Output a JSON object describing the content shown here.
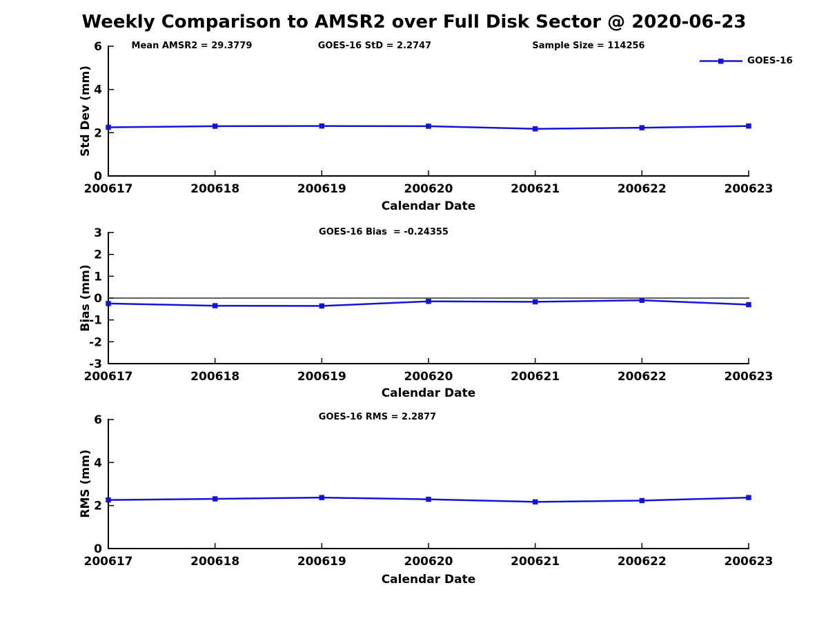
{
  "title": "Weekly Comparison to AMSR2 over Full Disk Sector @ 2020-06-23",
  "legend": {
    "label": "GOES-16"
  },
  "accent_color": "#1414d7",
  "chart_data": [
    {
      "type": "line",
      "panel": "std-dev",
      "annotations": [
        "Mean AMSR2 = 29.3779",
        "GOES-16 StD = 2.2747",
        "Sample Size = 114256"
      ],
      "categories": [
        "200617",
        "200618",
        "200619",
        "200620",
        "200621",
        "200622",
        "200623"
      ],
      "series": [
        {
          "name": "GOES-16",
          "marker": "square",
          "color": "#1414d7",
          "values": [
            2.25,
            2.3,
            2.31,
            2.3,
            2.18,
            2.23,
            2.31
          ]
        }
      ],
      "xlabel": "Calendar Date",
      "ylabel": "Std Dev (mm)",
      "ylim": [
        0,
        6
      ],
      "yticks": [
        0,
        2,
        4,
        6
      ],
      "grid": false,
      "legend_position": "top-right"
    },
    {
      "type": "line",
      "panel": "bias",
      "annotations": [
        "GOES-16 Bias  = -0.24355"
      ],
      "categories": [
        "200617",
        "200618",
        "200619",
        "200620",
        "200621",
        "200622",
        "200623"
      ],
      "series": [
        {
          "name": "GOES-16",
          "marker": "square",
          "color": "#1414d7",
          "values": [
            -0.25,
            -0.35,
            -0.36,
            -0.15,
            -0.17,
            -0.1,
            -0.3
          ]
        }
      ],
      "xlabel": "Calendar Date",
      "ylabel": "Bias (mm)",
      "ylim": [
        -3,
        3
      ],
      "yticks": [
        -3,
        -2,
        -1,
        0,
        1,
        2,
        3
      ],
      "reference_line_y": 0,
      "grid": false
    },
    {
      "type": "line",
      "panel": "rms",
      "annotations": [
        "GOES-16 RMS = 2.2877"
      ],
      "categories": [
        "200617",
        "200618",
        "200619",
        "200620",
        "200621",
        "200622",
        "200623"
      ],
      "series": [
        {
          "name": "GOES-16",
          "marker": "square",
          "color": "#1414d7",
          "values": [
            2.26,
            2.31,
            2.37,
            2.29,
            2.17,
            2.23,
            2.37
          ]
        }
      ],
      "xlabel": "Calendar Date",
      "ylabel": "RMS (mm)",
      "ylim": [
        0,
        6
      ],
      "yticks": [
        0,
        2,
        4,
        6
      ],
      "grid": false
    }
  ]
}
